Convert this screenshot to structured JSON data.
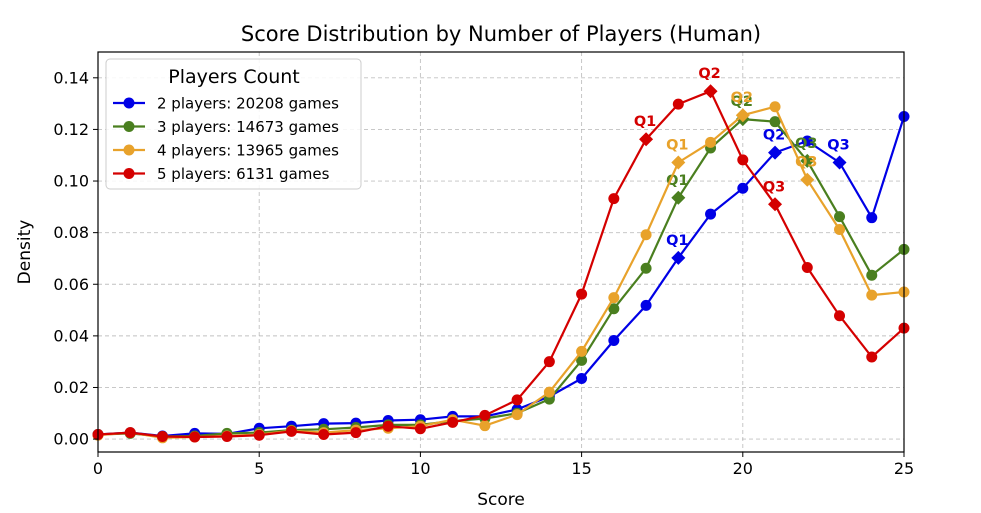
{
  "chart_data": {
    "type": "line",
    "title": "Score Distribution by Number of Players (Human)",
    "xlabel": "Score",
    "ylabel": "Density",
    "xlim": [
      0,
      25
    ],
    "ylim": [
      -0.005,
      0.15
    ],
    "x_ticks": [
      0,
      5,
      10,
      15,
      20,
      25
    ],
    "y_ticks": [
      0.0,
      0.02,
      0.04,
      0.06,
      0.08,
      0.1,
      0.12,
      0.14
    ],
    "grid": true,
    "legend": {
      "title": "Players Count",
      "placement": "top-left"
    },
    "series": [
      {
        "name": "2 players: 20208 games",
        "color": "#0000e6",
        "x": [
          0,
          1,
          2,
          3,
          4,
          5,
          6,
          7,
          8,
          9,
          10,
          11,
          12,
          13,
          14,
          15,
          16,
          17,
          18,
          19,
          20,
          21,
          22,
          23,
          24,
          25
        ],
        "values": [
          0.0018,
          0.0025,
          0.0012,
          0.0022,
          0.002,
          0.0042,
          0.005,
          0.006,
          0.0062,
          0.0072,
          0.0075,
          0.0088,
          0.0088,
          0.0115,
          0.0165,
          0.0235,
          0.0382,
          0.0518,
          0.0702,
          0.0872,
          0.0972,
          0.111,
          0.1155,
          0.1072,
          0.0858,
          0.125
        ],
        "quartiles": [
          {
            "label": "Q1",
            "x": 18,
            "y": 0.0702
          },
          {
            "label": "Q2",
            "x": 21,
            "y": 0.111
          },
          {
            "label": "Q3",
            "x": 23,
            "y": 0.1072
          }
        ]
      },
      {
        "name": "3 players: 14673 games",
        "color": "#4a7f1f",
        "x": [
          0,
          1,
          2,
          3,
          4,
          5,
          6,
          7,
          8,
          9,
          10,
          11,
          12,
          13,
          14,
          15,
          16,
          17,
          18,
          19,
          20,
          21,
          22,
          23,
          24,
          25
        ],
        "values": [
          0.0018,
          0.0022,
          0.001,
          0.0012,
          0.0022,
          0.0025,
          0.0035,
          0.0038,
          0.0045,
          0.0055,
          0.0055,
          0.007,
          0.008,
          0.01,
          0.0155,
          0.0305,
          0.0505,
          0.0662,
          0.0935,
          0.1128,
          0.124,
          0.123,
          0.1078,
          0.0862,
          0.0635,
          0.0735
        ],
        "quartiles": [
          {
            "label": "Q1",
            "x": 18,
            "y": 0.0935
          },
          {
            "label": "Q2",
            "x": 20,
            "y": 0.124
          },
          {
            "label": "Q3",
            "x": 22,
            "y": 0.1078
          }
        ]
      },
      {
        "name": "4 players: 13965 games",
        "color": "#e8a22b",
        "x": [
          0,
          1,
          2,
          3,
          4,
          5,
          6,
          7,
          8,
          9,
          10,
          11,
          12,
          13,
          14,
          15,
          16,
          17,
          18,
          19,
          20,
          21,
          22,
          23,
          24,
          25
        ],
        "values": [
          0.0015,
          0.0025,
          0.0005,
          0.0008,
          0.0012,
          0.0018,
          0.0032,
          0.0025,
          0.0035,
          0.0042,
          0.005,
          0.0075,
          0.0052,
          0.0095,
          0.0182,
          0.034,
          0.0548,
          0.0792,
          0.1072,
          0.115,
          0.1255,
          0.1288,
          0.1005,
          0.0812,
          0.0558,
          0.057
        ],
        "quartiles": [
          {
            "label": "Q1",
            "x": 18,
            "y": 0.1072
          },
          {
            "label": "Q2",
            "x": 20,
            "y": 0.1255
          },
          {
            "label": "Q3",
            "x": 22,
            "y": 0.1005
          }
        ]
      },
      {
        "name": "5 players: 6131 games",
        "color": "#d40000",
        "x": [
          0,
          1,
          2,
          3,
          4,
          5,
          6,
          7,
          8,
          9,
          10,
          11,
          12,
          13,
          14,
          15,
          16,
          17,
          18,
          19,
          20,
          21,
          22,
          23,
          24,
          25
        ],
        "values": [
          0.0018,
          0.0025,
          0.001,
          0.0008,
          0.001,
          0.0015,
          0.003,
          0.0018,
          0.0025,
          0.005,
          0.004,
          0.0065,
          0.0092,
          0.0152,
          0.03,
          0.0562,
          0.0932,
          0.1162,
          0.1298,
          0.1348,
          0.1082,
          0.091,
          0.0665,
          0.0478,
          0.0318,
          0.043
        ],
        "quartiles": [
          {
            "label": "Q1",
            "x": 17,
            "y": 0.1162
          },
          {
            "label": "Q2",
            "x": 19,
            "y": 0.1348
          },
          {
            "label": "Q3",
            "x": 21,
            "y": 0.091
          }
        ]
      }
    ]
  }
}
